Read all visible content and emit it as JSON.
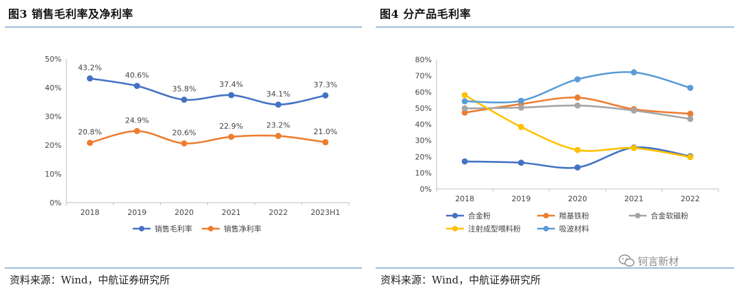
{
  "left_panel": {
    "title": "图3 销售毛利率及净利率",
    "source": "资料来源：Wind，中航证券研究所"
  },
  "right_panel": {
    "title": "图4 分产品毛利率",
    "source": "资料来源：Wind，中航证券研究所"
  },
  "watermark": {
    "text": "钶言新材"
  },
  "colors": {
    "blue": "#4472c4",
    "orange": "#ed7d31",
    "gray": "#a5a5a5",
    "yellow": "#ffc000",
    "lightblue": "#5b9bd5",
    "rule": "#4a7fb5"
  },
  "chart_data": [
    {
      "type": "line",
      "categories": [
        "2018",
        "2019",
        "2020",
        "2021",
        "2022",
        "2023H1"
      ],
      "ylim": [
        0,
        50
      ],
      "yticks": [
        "0%",
        "10%",
        "20%",
        "30%",
        "40%",
        "50%"
      ],
      "legend": "bottom",
      "series": [
        {
          "name": "销售毛利率",
          "color": "#4472c4",
          "values": [
            43.2,
            40.6,
            35.8,
            37.4,
            34.1,
            37.3
          ],
          "labels": [
            "43.2%",
            "40.6%",
            "35.8%",
            "37.4%",
            "34.1%",
            "37.3%"
          ]
        },
        {
          "name": "销售净利率",
          "color": "#ed7d31",
          "values": [
            20.8,
            24.9,
            20.6,
            22.9,
            23.2,
            21.0
          ],
          "labels": [
            "20.8%",
            "24.9%",
            "20.6%",
            "22.9%",
            "23.2%",
            "21.0%"
          ]
        }
      ]
    },
    {
      "type": "line",
      "categories": [
        "2018",
        "2019",
        "2020",
        "2021",
        "2022"
      ],
      "ylim": [
        0,
        80
      ],
      "yticks": [
        "0%",
        "10%",
        "20%",
        "30%",
        "40%",
        "50%",
        "60%",
        "70%",
        "80%"
      ],
      "legend": "bottom",
      "series": [
        {
          "name": "合金粉",
          "color": "#4472c4",
          "values": [
            17,
            16.2,
            13.3,
            25.6,
            20.2
          ]
        },
        {
          "name": "羰基铁粉",
          "color": "#ed7d31",
          "values": [
            47.2,
            52.5,
            56.5,
            49.3,
            46.5
          ]
        },
        {
          "name": "合金软磁粉",
          "color": "#a5a5a5",
          "values": [
            49.8,
            50.3,
            51.6,
            48.5,
            43.3
          ]
        },
        {
          "name": "注射成型喂料粉",
          "color": "#ffc000",
          "values": [
            58,
            38.3,
            24.1,
            25.3,
            19.7
          ]
        },
        {
          "name": "吸波材料",
          "color": "#5b9bd5",
          "values": [
            54.2,
            54.5,
            67.8,
            72.1,
            62.5
          ]
        }
      ]
    }
  ]
}
